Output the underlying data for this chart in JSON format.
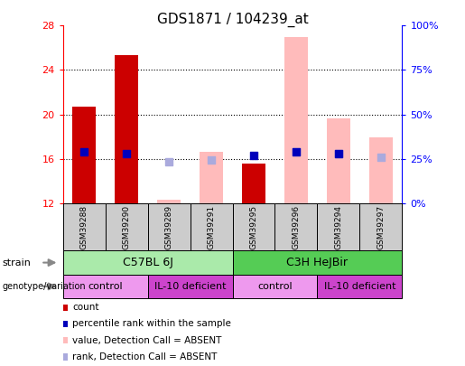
{
  "title": "GDS1871 / 104239_at",
  "samples": [
    "GSM39288",
    "GSM39290",
    "GSM39289",
    "GSM39291",
    "GSM39295",
    "GSM39296",
    "GSM39294",
    "GSM39297"
  ],
  "ylim_left": [
    12,
    28
  ],
  "ylim_right": [
    0,
    100
  ],
  "yticks_left": [
    12,
    16,
    20,
    24,
    28
  ],
  "yticks_right": [
    0,
    25,
    50,
    75,
    100
  ],
  "ytick_labels_right": [
    "0%",
    "25%",
    "50%",
    "75%",
    "100%"
  ],
  "count_bars": [
    20.7,
    25.3,
    null,
    null,
    15.6,
    null,
    null,
    null
  ],
  "rank_dots": [
    16.6,
    16.5,
    null,
    null,
    16.3,
    16.6,
    16.5,
    null
  ],
  "absent_value_bars": [
    null,
    null,
    12.3,
    16.6,
    null,
    27.0,
    19.6,
    17.9
  ],
  "absent_rank_dots": [
    null,
    null,
    15.7,
    15.9,
    null,
    16.6,
    16.5,
    16.1
  ],
  "strain_labels": [
    {
      "label": "C57BL 6J",
      "start": 0,
      "end": 4,
      "color": "#aaeaaa"
    },
    {
      "label": "C3H HeJBir",
      "start": 4,
      "end": 8,
      "color": "#55cc55"
    }
  ],
  "genotype_labels": [
    {
      "label": "control",
      "start": 0,
      "end": 2,
      "color": "#ee99ee"
    },
    {
      "label": "IL-10 deficient",
      "start": 2,
      "end": 4,
      "color": "#cc44cc"
    },
    {
      "label": "control",
      "start": 4,
      "end": 6,
      "color": "#ee99ee"
    },
    {
      "label": "IL-10 deficient",
      "start": 6,
      "end": 8,
      "color": "#cc44cc"
    }
  ],
  "bar_color_red": "#cc0000",
  "dot_color_blue": "#0000bb",
  "bar_color_pink": "#ffbbbb",
  "dot_color_lightblue": "#aaaadd",
  "legend_items": [
    {
      "color": "#cc0000",
      "label": "count"
    },
    {
      "color": "#0000bb",
      "label": "percentile rank within the sample"
    },
    {
      "color": "#ffbbbb",
      "label": "value, Detection Call = ABSENT"
    },
    {
      "color": "#aaaadd",
      "label": "rank, Detection Call = ABSENT"
    }
  ]
}
